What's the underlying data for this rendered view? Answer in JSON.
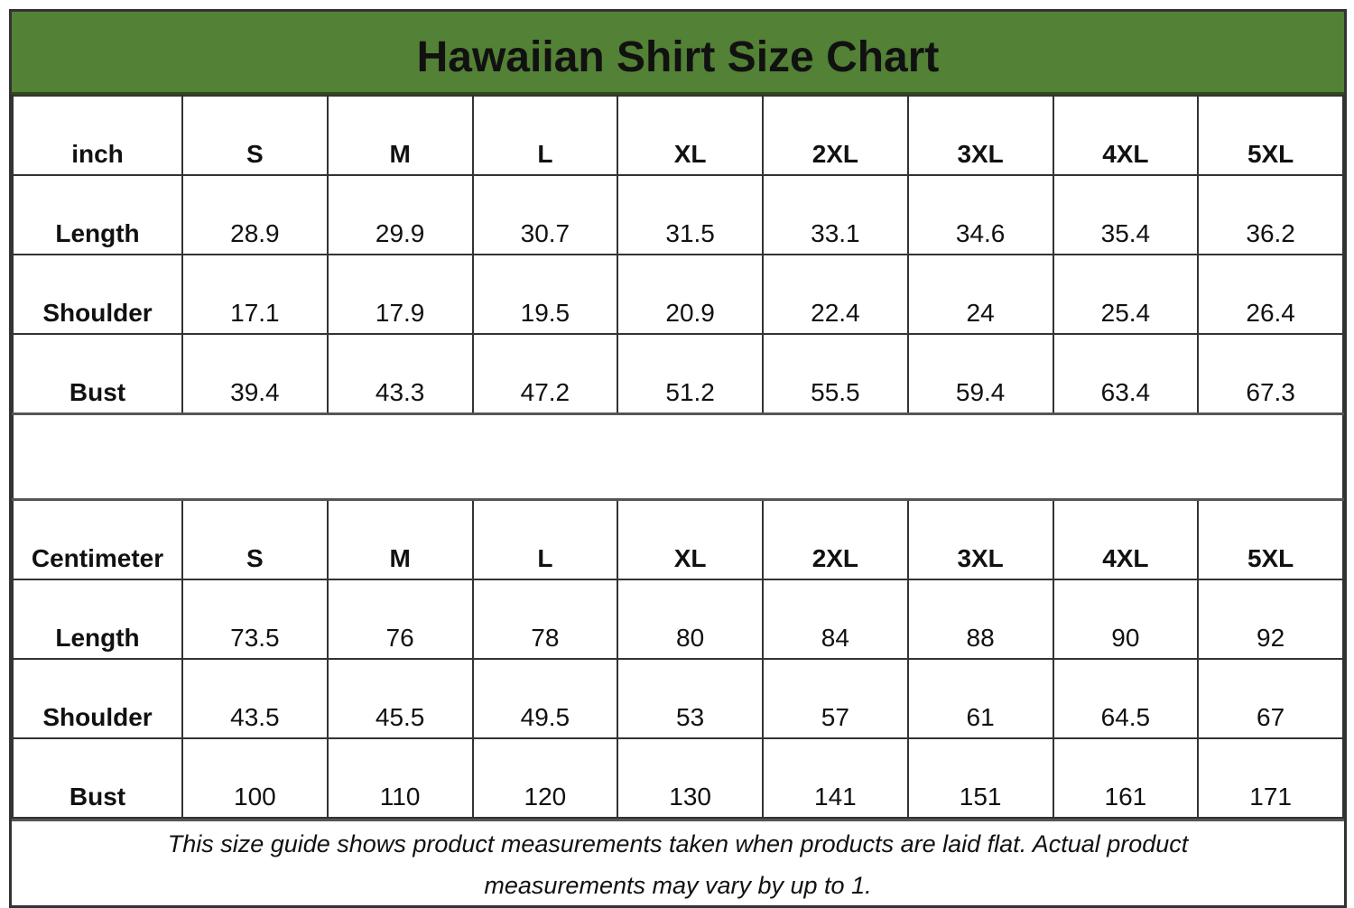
{
  "title": "Hawaiian Shirt Size Chart",
  "title_bg_color": "#538135",
  "sizes": [
    "S",
    "M",
    "L",
    "XL",
    "2XL",
    "3XL",
    "4XL",
    "5XL"
  ],
  "inch": {
    "unit_label": "inch",
    "rows": [
      {
        "label": "Length",
        "values": [
          "28.9",
          "29.9",
          "30.7",
          "31.5",
          "33.1",
          "34.6",
          "35.4",
          "36.2"
        ]
      },
      {
        "label": "Shoulder",
        "values": [
          "17.1",
          "17.9",
          "19.5",
          "20.9",
          "22.4",
          "24",
          "25.4",
          "26.4"
        ]
      },
      {
        "label": "Bust",
        "values": [
          "39.4",
          "43.3",
          "47.2",
          "51.2",
          "55.5",
          "59.4",
          "63.4",
          "67.3"
        ]
      }
    ]
  },
  "cm": {
    "unit_label": "Centimeter",
    "rows": [
      {
        "label": "Length",
        "values": [
          "73.5",
          "76",
          "78",
          "80",
          "84",
          "88",
          "90",
          "92"
        ]
      },
      {
        "label": "Shoulder",
        "values": [
          "43.5",
          "45.5",
          "49.5",
          "53",
          "57",
          "61",
          "64.5",
          "67"
        ]
      },
      {
        "label": "Bust",
        "values": [
          "100",
          "110",
          "120",
          "130",
          "141",
          "151",
          "161",
          "171"
        ]
      }
    ]
  },
  "footnote": "This size guide shows product measurements taken when products are laid flat. Actual product measurements may vary by up to 1."
}
